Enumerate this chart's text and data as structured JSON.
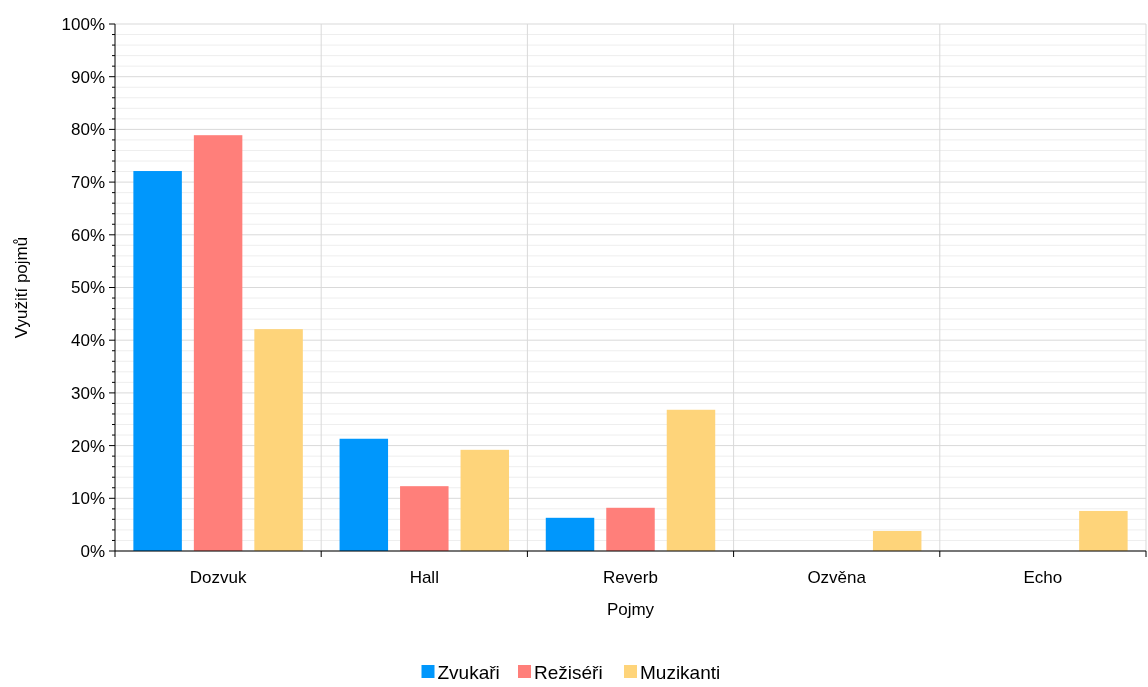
{
  "chart_data": {
    "type": "bar",
    "xlabel": "Pojmy",
    "ylabel": "Využití pojmů",
    "categories": [
      "Dozvuk",
      "Hall",
      "Reverb",
      "Ozvěna",
      "Echo"
    ],
    "series": [
      {
        "name": "Zvukaři",
        "color": "#0097fc",
        "values": [
          72.1,
          21.3,
          6.3,
          0,
          0
        ]
      },
      {
        "name": "Režiséři",
        "color": "#ff7f7a",
        "values": [
          78.9,
          12.3,
          8.2,
          0,
          0
        ]
      },
      {
        "name": "Muzikanti",
        "color": "#fed47a",
        "values": [
          42.1,
          19.2,
          26.8,
          3.8,
          7.6
        ]
      }
    ],
    "ylim": [
      0,
      100
    ],
    "yticks": [
      {
        "value": 0,
        "label": "0%"
      },
      {
        "value": 2,
        "label": null
      },
      {
        "value": 4,
        "label": null
      },
      {
        "value": 6,
        "label": null
      },
      {
        "value": 8,
        "label": null
      },
      {
        "value": 10,
        "label": "10%"
      },
      {
        "value": 12,
        "label": null
      },
      {
        "value": 14,
        "label": null
      },
      {
        "value": 16,
        "label": null
      },
      {
        "value": 18,
        "label": null
      },
      {
        "value": 20,
        "label": "20%"
      },
      {
        "value": 22,
        "label": null
      },
      {
        "value": 24,
        "label": null
      },
      {
        "value": 26,
        "label": null
      },
      {
        "value": 28,
        "label": null
      },
      {
        "value": 30,
        "label": "30%"
      },
      {
        "value": 32,
        "label": null
      },
      {
        "value": 34,
        "label": null
      },
      {
        "value": 36,
        "label": null
      },
      {
        "value": 38,
        "label": null
      },
      {
        "value": 40,
        "label": "40%"
      },
      {
        "value": 42,
        "label": null
      },
      {
        "value": 44,
        "label": null
      },
      {
        "value": 46,
        "label": null
      },
      {
        "value": 48,
        "label": null
      },
      {
        "value": 50,
        "label": "50%"
      },
      {
        "value": 52,
        "label": null
      },
      {
        "value": 54,
        "label": null
      },
      {
        "value": 56,
        "label": null
      },
      {
        "value": 58,
        "label": null
      },
      {
        "value": 60,
        "label": "60%"
      },
      {
        "value": 62,
        "label": null
      },
      {
        "value": 64,
        "label": null
      },
      {
        "value": 66,
        "label": null
      },
      {
        "value": 68,
        "label": null
      },
      {
        "value": 70,
        "label": "70%"
      },
      {
        "value": 72,
        "label": null
      },
      {
        "value": 74,
        "label": null
      },
      {
        "value": 76,
        "label": null
      },
      {
        "value": 78,
        "label": null
      },
      {
        "value": 80,
        "label": "80%"
      },
      {
        "value": 82,
        "label": null
      },
      {
        "value": 84,
        "label": null
      },
      {
        "value": 86,
        "label": null
      },
      {
        "value": 88,
        "label": null
      },
      {
        "value": 90,
        "label": "90%"
      },
      {
        "value": 92,
        "label": null
      },
      {
        "value": 94,
        "label": null
      },
      {
        "value": 96,
        "label": null
      },
      {
        "value": 98,
        "label": null
      },
      {
        "value": 100,
        "label": "100%"
      }
    ],
    "grid": true,
    "legend": "bottom"
  }
}
